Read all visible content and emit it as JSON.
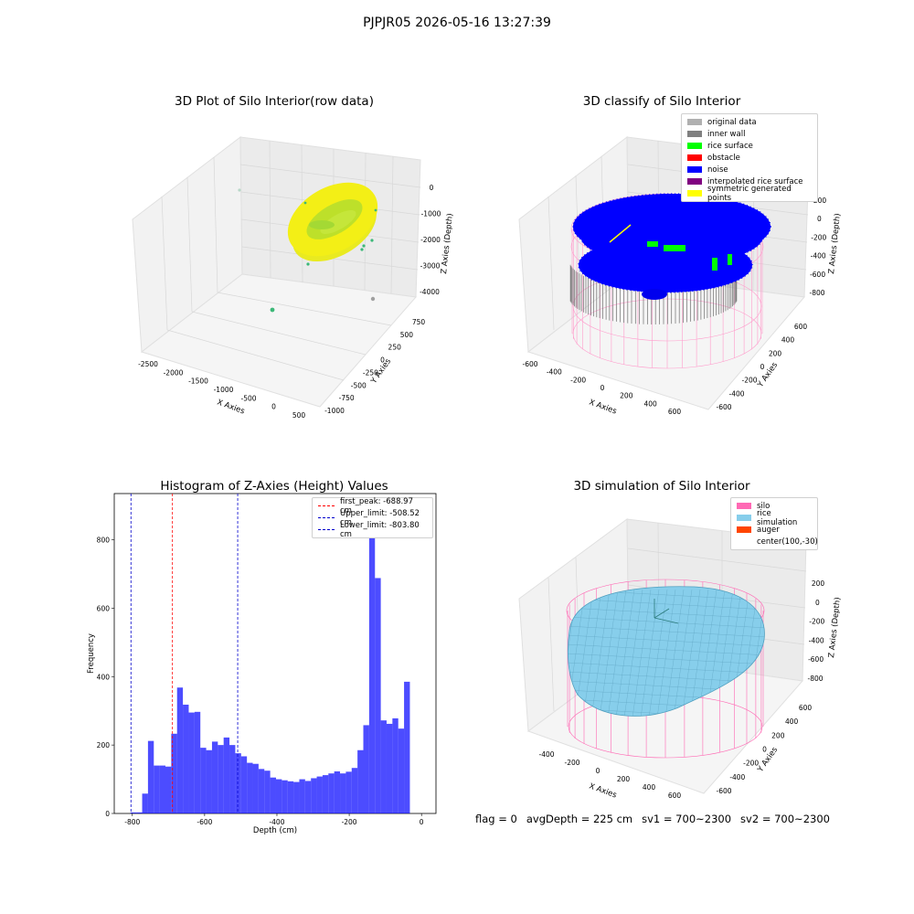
{
  "figure": {
    "suptitle": "PJPJR05 2026-05-16 13:27:39",
    "footer": {
      "flag": "flag = 0",
      "avg_depth": "avgDepth = 225 cm",
      "sv1": "sv1 = 700~2300",
      "sv2": "sv2 = 700~2300"
    }
  },
  "panels": {
    "raw3d": {
      "title": "3D Plot of Silo Interior(row data)",
      "xlabel": "X Axies",
      "ylabel": "Y Axies",
      "zlabel": "Z Axies (Depth)",
      "xticks": [
        "-2500",
        "-2000",
        "-1500",
        "-1000",
        "-500",
        "0",
        "500"
      ],
      "yticks": [
        "750",
        "500",
        "250",
        "0",
        "-250",
        "-500",
        "-750",
        "-1000"
      ],
      "zticks": [
        "0",
        "-1000",
        "-2000",
        "-3000",
        "-4000"
      ],
      "colors": {
        "ring_top": "#f2ee14",
        "ring_mid": "#c9e327",
        "ring_inner": "#a8dc2c",
        "points": "#3cb878"
      }
    },
    "classify3d": {
      "title": "3D classify of Silo Interior",
      "xlabel": "X Axies",
      "ylabel": "Y Axies",
      "zlabel": "Z Axies (Depth)",
      "xticks": [
        "-600",
        "-400",
        "-200",
        "0",
        "200",
        "400",
        "600"
      ],
      "yticks": [
        "600",
        "400",
        "200",
        "0",
        "-200",
        "-400",
        "-600"
      ],
      "zticks": [
        "200",
        "0",
        "-200",
        "-400",
        "-600",
        "-800"
      ],
      "legend": [
        {
          "label": "original data",
          "color": "#b0b0b0"
        },
        {
          "label": "inner wall",
          "color": "#808080"
        },
        {
          "label": "rice surface",
          "color": "#00ff00"
        },
        {
          "label": "obstacle",
          "color": "#ff0000"
        },
        {
          "label": "noise",
          "color": "#0000ff"
        },
        {
          "label": "interpolated rice surface",
          "color": "#800080"
        },
        {
          "label": "symmetric generated points",
          "color": "#ffff00"
        }
      ]
    },
    "simulation3d": {
      "title": "3D simulation of Silo Interior",
      "xlabel": "X Axies",
      "ylabel": "Y Axies",
      "zlabel": "Z Axies (Depth)",
      "xticks": [
        "-400",
        "-200",
        "0",
        "200",
        "400",
        "600"
      ],
      "yticks": [
        "600",
        "400",
        "200",
        "0",
        "-200",
        "-400",
        "-600"
      ],
      "zticks": [
        "200",
        "0",
        "-200",
        "-400",
        "-600",
        "-800"
      ],
      "legend": [
        {
          "label": "silo",
          "color": "#ff69b4"
        },
        {
          "label": "rice simulation",
          "color": "#87ceeb"
        },
        {
          "label": "auger",
          "color": "#ff4500"
        },
        {
          "label": "center(100,-30)",
          "color": ""
        }
      ]
    }
  },
  "chart_data": {
    "type": "bar",
    "title": "Histogram of Z-Axies (Height) Values",
    "xlabel": "Depth (cm)",
    "ylabel": "Frequency",
    "xlim": [
      -850,
      40
    ],
    "ylim": [
      0,
      935
    ],
    "xticks": [
      -800,
      -600,
      -400,
      -200,
      0
    ],
    "yticks": [
      0,
      200,
      400,
      600,
      800
    ],
    "bar_color": "#0000ff",
    "bin_width": 16.1,
    "bins": [
      {
        "x0": -805,
        "count": 3
      },
      {
        "x0": -788.9,
        "count": 3
      },
      {
        "x0": -772.8,
        "count": 58
      },
      {
        "x0": -756.7,
        "count": 212
      },
      {
        "x0": -740.6,
        "count": 140
      },
      {
        "x0": -724.5,
        "count": 140
      },
      {
        "x0": -708.4,
        "count": 137
      },
      {
        "x0": -692.3,
        "count": 233
      },
      {
        "x0": -676.2,
        "count": 368
      },
      {
        "x0": -660.1,
        "count": 318
      },
      {
        "x0": -644,
        "count": 295
      },
      {
        "x0": -627.9,
        "count": 297
      },
      {
        "x0": -611.8,
        "count": 192
      },
      {
        "x0": -595.7,
        "count": 185
      },
      {
        "x0": -579.6,
        "count": 210
      },
      {
        "x0": -563.5,
        "count": 200
      },
      {
        "x0": -547.4,
        "count": 222
      },
      {
        "x0": -531.3,
        "count": 200
      },
      {
        "x0": -515.2,
        "count": 176
      },
      {
        "x0": -499.1,
        "count": 167
      },
      {
        "x0": -483,
        "count": 148
      },
      {
        "x0": -466.9,
        "count": 145
      },
      {
        "x0": -450.8,
        "count": 130
      },
      {
        "x0": -434.7,
        "count": 125
      },
      {
        "x0": -418.6,
        "count": 105
      },
      {
        "x0": -402.5,
        "count": 100
      },
      {
        "x0": -386.4,
        "count": 97
      },
      {
        "x0": -370.3,
        "count": 94
      },
      {
        "x0": -354.2,
        "count": 92
      },
      {
        "x0": -338.1,
        "count": 100
      },
      {
        "x0": -322,
        "count": 95
      },
      {
        "x0": -305.9,
        "count": 103
      },
      {
        "x0": -289.8,
        "count": 108
      },
      {
        "x0": -273.7,
        "count": 112
      },
      {
        "x0": -257.6,
        "count": 117
      },
      {
        "x0": -241.5,
        "count": 123
      },
      {
        "x0": -225.4,
        "count": 117
      },
      {
        "x0": -209.3,
        "count": 122
      },
      {
        "x0": -193.2,
        "count": 133
      },
      {
        "x0": -177.1,
        "count": 185
      },
      {
        "x0": -161,
        "count": 258
      },
      {
        "x0": -144.9,
        "count": 920
      },
      {
        "x0": -128.8,
        "count": 688
      },
      {
        "x0": -112.7,
        "count": 272
      },
      {
        "x0": -96.6,
        "count": 262
      },
      {
        "x0": -80.5,
        "count": 278
      },
      {
        "x0": -64.4,
        "count": 248
      },
      {
        "x0": -48.3,
        "count": 385
      }
    ],
    "vlines": [
      {
        "label": "first_peak: -688.97 cm",
        "x": -688.97,
        "color": "#ff0000"
      },
      {
        "label": "Upper_limit: -508.52 cm",
        "x": -508.52,
        "color": "#0000cc"
      },
      {
        "label": "Lower_limit: -803.80 cm",
        "x": -803.8,
        "color": "#0000cc"
      }
    ],
    "legend_loc": "upper right"
  }
}
